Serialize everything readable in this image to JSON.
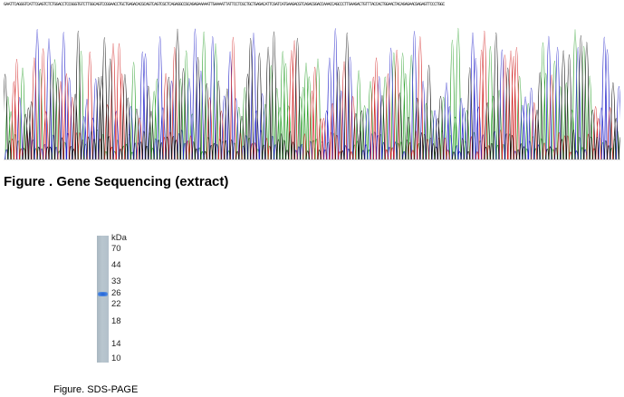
{
  "sequencing": {
    "sequence": "GAATTCAGGGTCATTCGAGTCTCTGGACCTCCGGGTGTCTTGGCAGTCCGGAACCTGCTGAGACACGCAGTCAGTCGCTCAGAGGCCGCAGAGAAAAATTGAAAATTATTCCTCGCTGCTGAGACATTCGATCATGAAGACGTCAGACGGACCAAACCAGCCCTTGAAGACTGTTTACCACTGGAACTACAGAGAACGAGAGTTCCCTGGC",
    "trace_colors": {
      "A": "#2ca02c",
      "C": "#1f1fc8",
      "G": "#111111",
      "T": "#d12020"
    },
    "caption": "Figure . Gene Sequencing (extract)"
  },
  "gel": {
    "band_kda": 26,
    "band_color": "#2f6fdc",
    "markers": [
      {
        "label": "kDa",
        "kda": null
      },
      {
        "label": "70",
        "kda": 70
      },
      {
        "label": "44",
        "kda": 44
      },
      {
        "label": "33",
        "kda": 33
      },
      {
        "label": "26",
        "kda": 26
      },
      {
        "label": "22",
        "kda": 22
      },
      {
        "label": "18",
        "kda": 18
      },
      {
        "label": "14",
        "kda": 14
      },
      {
        "label": "10",
        "kda": 10
      }
    ],
    "caption": "Figure. SDS-PAGE"
  }
}
